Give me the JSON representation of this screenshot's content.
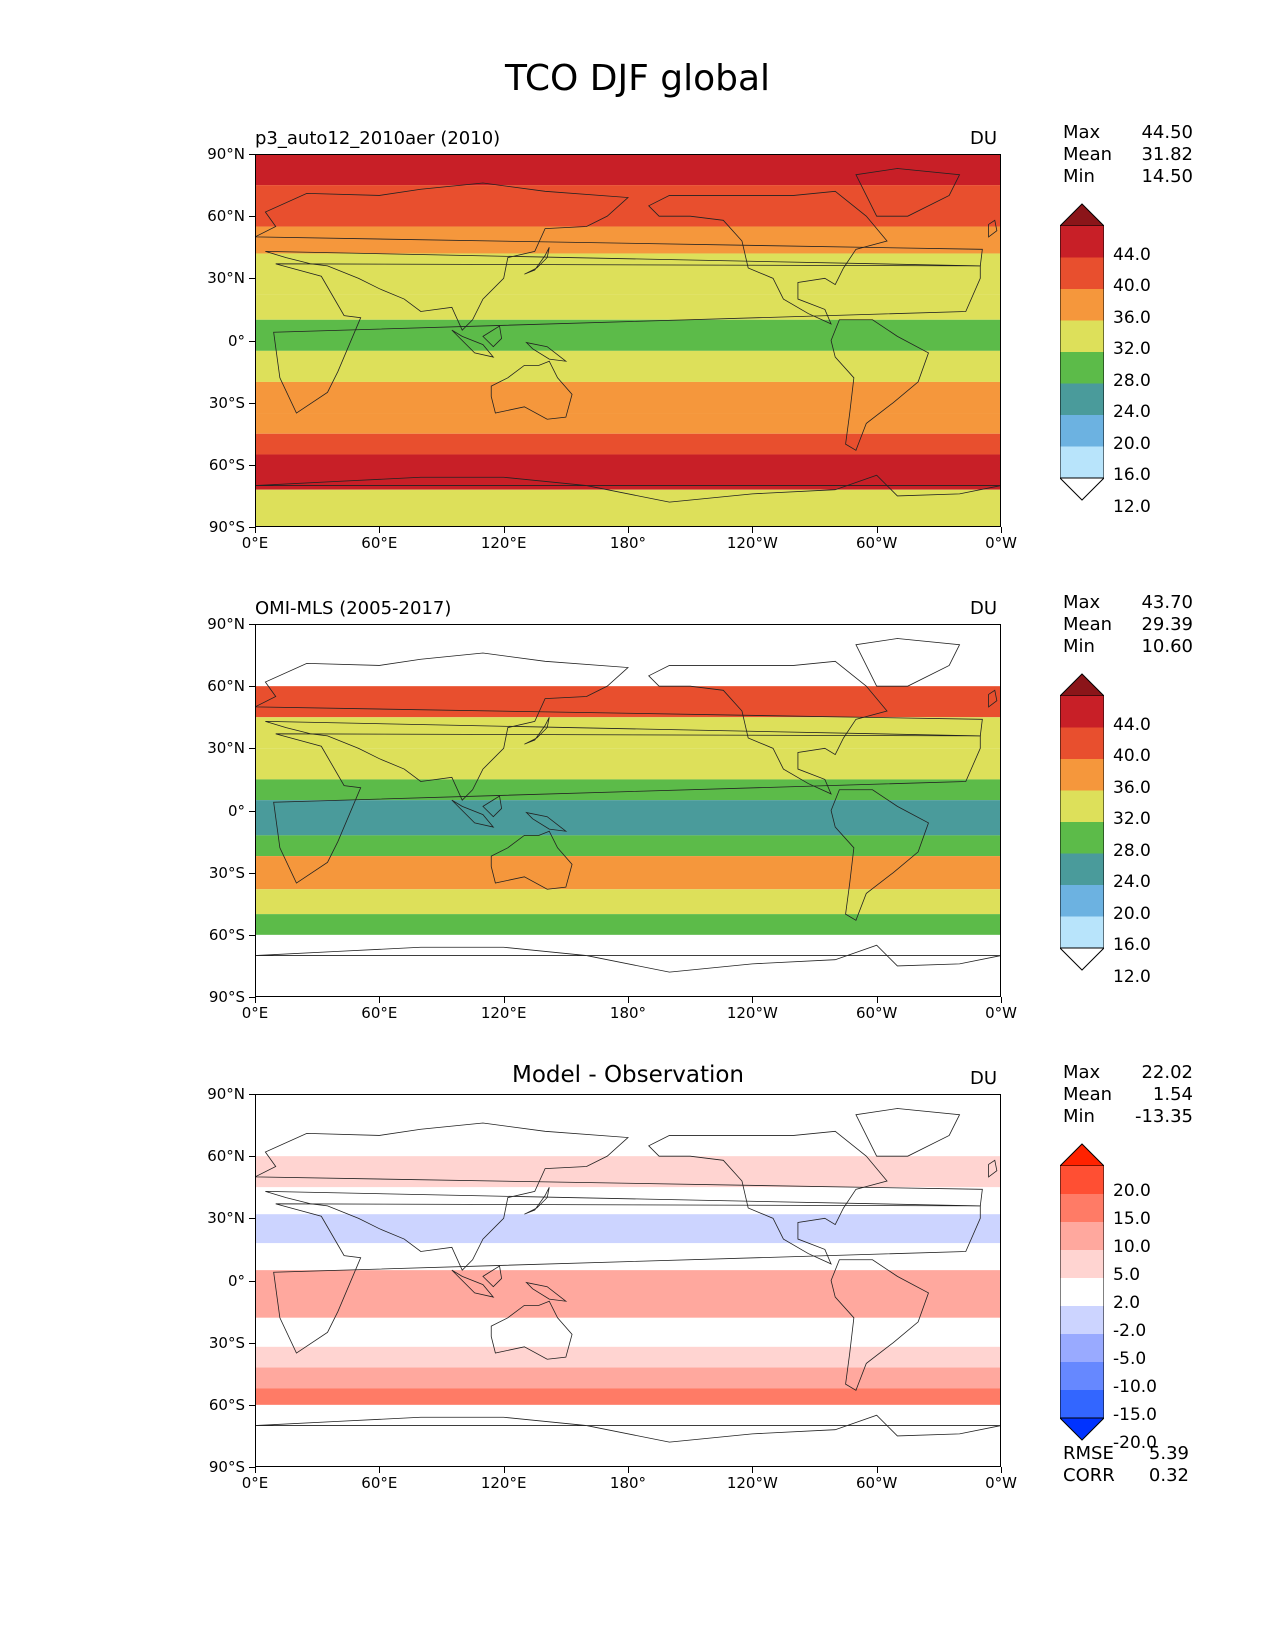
{
  "figure_title": "TCO DJF global",
  "colors": {
    "abs_levels": [
      "#ffffff",
      "#b8e4fb",
      "#6cb2e1",
      "#4a9b9b",
      "#5cbb49",
      "#dde05a",
      "#f5973c",
      "#e84f2e",
      "#c81f27",
      "#8b1519"
    ],
    "diff_levels": [
      "#0033ff",
      "#3366ff",
      "#6688ff",
      "#99aaff",
      "#ccd4ff",
      "#ffffff",
      "#ffd4d1",
      "#ffa89e",
      "#ff7b66",
      "#ff4f33",
      "#ff2200"
    ]
  },
  "x_ticks": [
    "0°E",
    "60°E",
    "120°E",
    "180°",
    "120°W",
    "60°W",
    "0°W"
  ],
  "y_ticks": [
    "90°N",
    "60°N",
    "30°N",
    "0°",
    "30°S",
    "60°S",
    "90°S"
  ],
  "panels": [
    {
      "title": "p3_auto12_2010aer (2010)",
      "unit": "DU",
      "stats": {
        "max_label": "Max",
        "max": "44.50",
        "mean_label": "Mean",
        "mean": "31.82",
        "min_label": "Min",
        "min": "14.50"
      },
      "colorbar_labels": [
        "44.0",
        "40.0",
        "36.0",
        "32.0",
        "28.0",
        "24.0",
        "20.0",
        "16.0",
        "12.0"
      ]
    },
    {
      "title": "OMI-MLS (2005-2017)",
      "unit": "DU",
      "stats": {
        "max_label": "Max",
        "max": "43.70",
        "mean_label": "Mean",
        "mean": "29.39",
        "min_label": "Min",
        "min": "10.60"
      },
      "colorbar_labels": [
        "44.0",
        "40.0",
        "36.0",
        "32.0",
        "28.0",
        "24.0",
        "20.0",
        "16.0",
        "12.0"
      ]
    },
    {
      "title": "Model - Observation",
      "unit": "DU",
      "stats": {
        "max_label": "Max",
        "max": "22.02",
        "mean_label": "Mean",
        "mean": "1.54",
        "min_label": "Min",
        "min": "-13.35"
      },
      "colorbar_labels": [
        "20.0",
        "15.0",
        "10.0",
        "5.0",
        "2.0",
        "-2.0",
        "-5.0",
        "-10.0",
        "-15.0",
        "-20.0"
      ],
      "rmse_label": "RMSE",
      "rmse": "5.39",
      "corr_label": "CORR",
      "corr": "0.32"
    }
  ],
  "chart_data": [
    {
      "type": "heatmap",
      "title": "p3_auto12_2010aer (2010)",
      "units": "DU",
      "xlim": [
        0,
        360
      ],
      "ylim": [
        -90,
        90
      ],
      "levels": [
        12,
        16,
        20,
        24,
        28,
        32,
        36,
        40,
        44
      ],
      "zonal_bands": [
        {
          "lat": [
            75,
            90
          ],
          "value": 42
        },
        {
          "lat": [
            55,
            75
          ],
          "value": 38
        },
        {
          "lat": [
            42,
            55
          ],
          "value": 33
        },
        {
          "lat": [
            22,
            42
          ],
          "value": 30
        },
        {
          "lat": [
            10,
            22
          ],
          "value": 29
        },
        {
          "lat": [
            -5,
            10
          ],
          "value": 26
        },
        {
          "lat": [
            -20,
            -5
          ],
          "value": 29
        },
        {
          "lat": [
            -35,
            -20
          ],
          "value": 33
        },
        {
          "lat": [
            -45,
            -35
          ],
          "value": 35
        },
        {
          "lat": [
            -55,
            -45
          ],
          "value": 38
        },
        {
          "lat": [
            -72,
            -55
          ],
          "value": 42
        },
        {
          "lat": [
            -90,
            -72
          ],
          "value": 30
        }
      ]
    },
    {
      "type": "heatmap",
      "title": "OMI-MLS (2005-2017)",
      "units": "DU",
      "xlim": [
        0,
        360
      ],
      "ylim": [
        -90,
        90
      ],
      "levels": [
        12,
        16,
        20,
        24,
        28,
        32,
        36,
        40,
        44
      ],
      "zonal_bands": [
        {
          "lat": [
            45,
            60
          ],
          "value": 37
        },
        {
          "lat": [
            30,
            45
          ],
          "value": 31
        },
        {
          "lat": [
            15,
            30
          ],
          "value": 29
        },
        {
          "lat": [
            5,
            15
          ],
          "value": 26
        },
        {
          "lat": [
            -12,
            5
          ],
          "value": 22
        },
        {
          "lat": [
            -22,
            -12
          ],
          "value": 26
        },
        {
          "lat": [
            -38,
            -22
          ],
          "value": 33
        },
        {
          "lat": [
            -50,
            -38
          ],
          "value": 30
        },
        {
          "lat": [
            -60,
            -50
          ],
          "value": 26
        }
      ]
    },
    {
      "type": "heatmap",
      "title": "Model - Observation",
      "units": "DU",
      "xlim": [
        0,
        360
      ],
      "ylim": [
        -90,
        90
      ],
      "levels": [
        -20,
        -15,
        -10,
        -5,
        -2,
        2,
        5,
        10,
        15,
        20
      ],
      "zonal_bands": [
        {
          "lat": [
            45,
            60
          ],
          "value": 3
        },
        {
          "lat": [
            32,
            45
          ],
          "value": 0
        },
        {
          "lat": [
            18,
            32
          ],
          "value": -3
        },
        {
          "lat": [
            5,
            18
          ],
          "value": -1
        },
        {
          "lat": [
            -18,
            5
          ],
          "value": 6
        },
        {
          "lat": [
            -32,
            -18
          ],
          "value": -1
        },
        {
          "lat": [
            -42,
            -32
          ],
          "value": 3
        },
        {
          "lat": [
            -52,
            -42
          ],
          "value": 9
        },
        {
          "lat": [
            -60,
            -52
          ],
          "value": 14
        }
      ]
    }
  ]
}
